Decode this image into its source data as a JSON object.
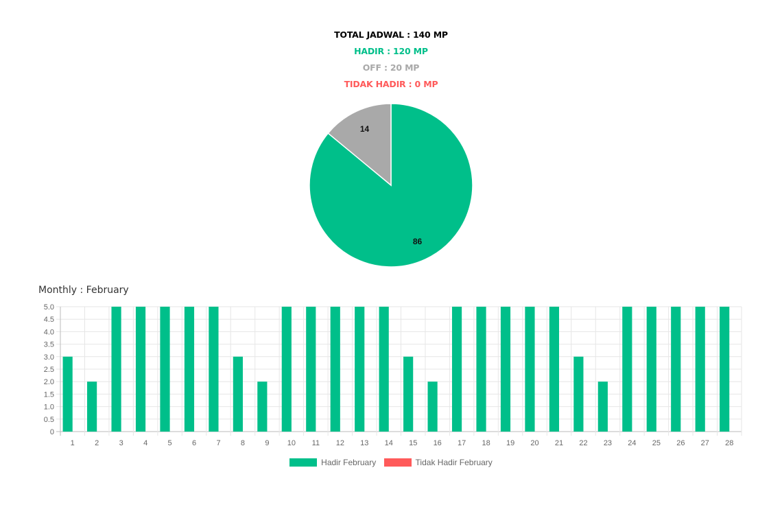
{
  "summary": {
    "total": "TOTAL JADWAL : 140 MP",
    "hadir": "HADIR : 120 MP",
    "off": "OFF : 20 MP",
    "tidak_hadir": "TIDAK HADIR : 0 MP"
  },
  "monthly_title": "Monthly : February",
  "colors": {
    "hadir": "#00bf8a",
    "off": "#a9a9a9",
    "tidak_hadir": "#ff5a5a",
    "total": "#000000"
  },
  "chart_data": [
    {
      "type": "pie",
      "categories": [
        "Hadir",
        "Off"
      ],
      "values": [
        86,
        14
      ],
      "data_labels": [
        "86",
        "14"
      ],
      "colors": [
        "#00bf8a",
        "#a9a9a9"
      ]
    },
    {
      "type": "bar",
      "title": "Monthly : February",
      "categories": [
        "1",
        "2",
        "3",
        "4",
        "5",
        "6",
        "7",
        "8",
        "9",
        "10",
        "11",
        "12",
        "13",
        "14",
        "15",
        "16",
        "17",
        "18",
        "19",
        "20",
        "21",
        "22",
        "23",
        "24",
        "25",
        "26",
        "27",
        "28"
      ],
      "series": [
        {
          "name": "Hadir February",
          "color": "#00bf8a",
          "values": [
            3,
            2,
            5,
            5,
            5,
            5,
            5,
            3,
            2,
            5,
            5,
            5,
            5,
            5,
            3,
            2,
            5,
            5,
            5,
            5,
            5,
            3,
            2,
            5,
            5,
            5,
            5,
            5
          ]
        },
        {
          "name": "Tidak Hadir February",
          "color": "#ff5a5a",
          "values": [
            0,
            0,
            0,
            0,
            0,
            0,
            0,
            0,
            0,
            0,
            0,
            0,
            0,
            0,
            0,
            0,
            0,
            0,
            0,
            0,
            0,
            0,
            0,
            0,
            0,
            0,
            0,
            0
          ]
        }
      ],
      "yticks": [
        "0",
        "0.5",
        "1.0",
        "1.5",
        "2.0",
        "2.5",
        "3.0",
        "3.5",
        "4.0",
        "4.5",
        "5.0"
      ],
      "ylim": [
        0,
        5
      ],
      "grid": true,
      "legend_position": "bottom"
    }
  ]
}
